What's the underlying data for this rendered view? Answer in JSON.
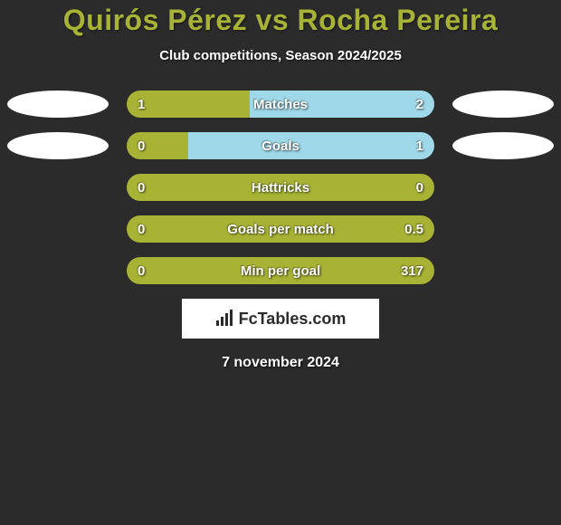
{
  "background_color": "#2b2b2b",
  "title": {
    "text": "Quirós Pérez vs Rocha Pereira",
    "color": "#a8b234",
    "fontsize": 32
  },
  "subtitle": {
    "text": "Club competitions, Season 2024/2025",
    "color": "#ffffff",
    "fontsize": 15
  },
  "colors": {
    "left": "#a8b234",
    "right": "#9fd8e8",
    "bar_radius": 15,
    "text": "#ffffff",
    "oval": "#ffffff"
  },
  "rows": [
    {
      "label": "Matches",
      "left_value": "1",
      "right_value": "2",
      "left_pct": 40,
      "right_pct": 60,
      "show_ovals": true
    },
    {
      "label": "Goals",
      "left_value": "0",
      "right_value": "1",
      "left_pct": 20,
      "right_pct": 80,
      "show_ovals": true
    },
    {
      "label": "Hattricks",
      "left_value": "0",
      "right_value": "0",
      "left_pct": 100,
      "right_pct": 0,
      "show_ovals": false
    },
    {
      "label": "Goals per match",
      "left_value": "0",
      "right_value": "0.5",
      "left_pct": 100,
      "right_pct": 0,
      "show_ovals": false
    },
    {
      "label": "Min per goal",
      "left_value": "0",
      "right_value": "317",
      "left_pct": 100,
      "right_pct": 0,
      "show_ovals": false
    }
  ],
  "logo": {
    "text": "FcTables.com",
    "box_bg": "#ffffff",
    "text_color": "#2b2b2b",
    "icon_color": "#2b2b2b"
  },
  "date": {
    "text": "7 november 2024",
    "color": "#ffffff",
    "fontsize": 16
  }
}
